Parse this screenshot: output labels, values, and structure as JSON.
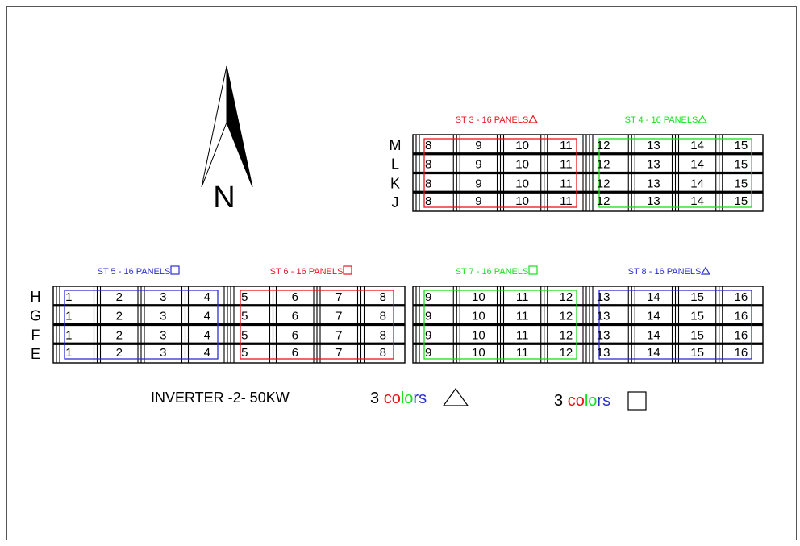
{
  "compass": {
    "letter": "N"
  },
  "inverter_label": "INVERTER -2-  50KW",
  "colors": {
    "red": "#e8141b",
    "green": "#16e01a",
    "blue": "#2b2fd1",
    "black": "#000000"
  },
  "legend": [
    {
      "prefix": "3 ",
      "word": [
        "c",
        "o",
        "l",
        "o",
        "r",
        "s"
      ],
      "letter_colors": [
        "red",
        "red",
        "green",
        "green",
        "blue",
        "blue"
      ],
      "shape": "triangle"
    },
    {
      "prefix": "3 ",
      "word": [
        "c",
        "o",
        "l",
        "o",
        "r",
        "s"
      ],
      "letter_colors": [
        "red",
        "red",
        "green",
        "green",
        "blue",
        "blue"
      ],
      "shape": "square"
    }
  ],
  "blocks": [
    {
      "id": "top",
      "rows": [
        "M",
        "L",
        "K",
        "J"
      ],
      "strings": [
        {
          "label": "ST 3 - 16 PANELS",
          "color": "red",
          "symbol": "triangle",
          "cells": [
            "8",
            "9",
            "10",
            "11"
          ]
        },
        {
          "label": "ST 4 - 16 PANELS",
          "color": "green",
          "symbol": "triangle",
          "cells": [
            "12",
            "13",
            "14",
            "15"
          ]
        }
      ]
    },
    {
      "id": "bottom-left",
      "rows": [
        "H",
        "G",
        "F",
        "E"
      ],
      "strings": [
        {
          "label": "ST 5 - 16 PANELS",
          "color": "blue",
          "symbol": "square",
          "cells": [
            "1",
            "2",
            "3",
            "4"
          ]
        },
        {
          "label": "ST 6 - 16 PANELS",
          "color": "red",
          "symbol": "square",
          "cells": [
            "5",
            "6",
            "7",
            "8"
          ]
        }
      ]
    },
    {
      "id": "bottom-right",
      "rows": [],
      "strings": [
        {
          "label": "ST 7 - 16 PANELS",
          "color": "green",
          "symbol": "square",
          "cells": [
            "9",
            "10",
            "11",
            "12"
          ]
        },
        {
          "label": "ST 8 - 16 PANELS",
          "color": "blue",
          "symbol": "triangle",
          "cells": [
            "13",
            "14",
            "15",
            "16"
          ]
        }
      ]
    }
  ]
}
